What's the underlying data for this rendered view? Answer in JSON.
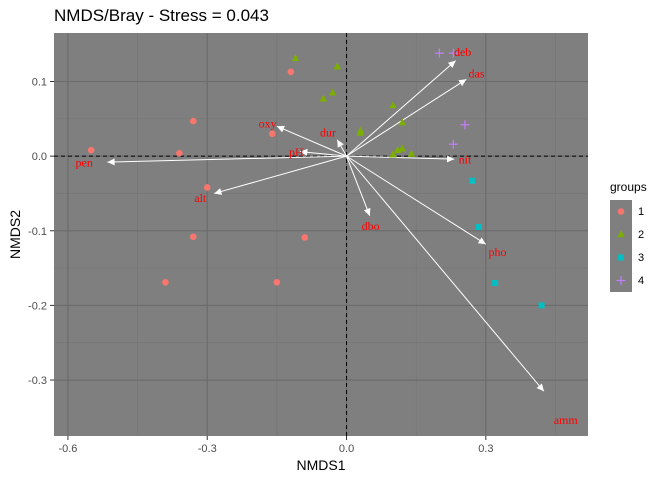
{
  "chart_data": {
    "type": "scatter",
    "title": "NMDS/Bray - Stress = 0.043",
    "xlabel": "NMDS1",
    "ylabel": "NMDS2",
    "xlim": [
      -0.63,
      0.52
    ],
    "ylim": [
      -0.375,
      0.165
    ],
    "xticks": [
      "-0.6",
      "-0.3",
      "0.0",
      "0.3"
    ],
    "xtick_values": [
      -0.6,
      -0.3,
      0.0,
      0.3
    ],
    "yticks": [
      "0.1",
      "0.0",
      "-0.1",
      "-0.2",
      "-0.3"
    ],
    "ytick_values": [
      0.1,
      0.0,
      -0.1,
      -0.2,
      -0.3
    ],
    "legend": {
      "title": "groups",
      "placement": "right",
      "labels": [
        "1",
        "2",
        "3",
        "4"
      ]
    },
    "colors": {
      "panel": "#7f7f7f",
      "grid_major": "#6b6b6b",
      "grid_minor": "#757575",
      "arrow": "#ffffff",
      "arrow_label": "#ff0000",
      "g1": "#f8766d",
      "g2": "#7cae00",
      "g3": "#00bfc4",
      "g4": "#c77cff"
    },
    "series": [
      {
        "name": "1",
        "shape": "circle",
        "points": [
          [
            -0.55,
            0.008
          ],
          [
            -0.33,
            0.047
          ],
          [
            -0.36,
            0.004
          ],
          [
            -0.12,
            0.113
          ],
          [
            -0.16,
            0.03
          ],
          [
            -0.3,
            -0.042
          ],
          [
            -0.33,
            -0.108
          ],
          [
            -0.09,
            -0.109
          ],
          [
            -0.39,
            -0.169
          ],
          [
            -0.15,
            -0.169
          ]
        ]
      },
      {
        "name": "2",
        "shape": "triangle",
        "points": [
          [
            -0.11,
            0.131
          ],
          [
            -0.02,
            0.12
          ],
          [
            -0.05,
            0.077
          ],
          [
            -0.03,
            0.085
          ],
          [
            0.03,
            0.034
          ],
          [
            0.03,
            0.031
          ],
          [
            0.1,
            0.068
          ],
          [
            0.12,
            0.045
          ],
          [
            0.1,
            0.002
          ],
          [
            0.11,
            0.008
          ],
          [
            0.12,
            0.01
          ],
          [
            0.14,
            0.003
          ]
        ]
      },
      {
        "name": "3",
        "shape": "square",
        "points": [
          [
            0.27,
            -0.033
          ],
          [
            0.285,
            -0.095
          ],
          [
            0.32,
            -0.17
          ],
          [
            0.42,
            -0.2
          ]
        ]
      },
      {
        "name": "4",
        "shape": "cross",
        "points": [
          [
            0.2,
            0.138
          ],
          [
            0.23,
            0.138
          ],
          [
            0.255,
            0.042
          ],
          [
            0.23,
            0.016
          ]
        ]
      }
    ],
    "vectors": [
      {
        "label": "deb",
        "x": 0.235,
        "y": 0.128,
        "lx": 0.25,
        "ly": 0.138
      },
      {
        "label": "das",
        "x": 0.258,
        "y": 0.103,
        "lx": 0.28,
        "ly": 0.109
      },
      {
        "label": "nit",
        "x": 0.232,
        "y": -0.004,
        "lx": 0.255,
        "ly": -0.006
      },
      {
        "label": "pho",
        "x": 0.3,
        "y": -0.118,
        "lx": 0.325,
        "ly": -0.13
      },
      {
        "label": "amm",
        "x": 0.425,
        "y": -0.315,
        "lx": 0.472,
        "ly": -0.355
      },
      {
        "label": "dbo",
        "x": 0.05,
        "y": -0.08,
        "lx": 0.052,
        "ly": -0.095
      },
      {
        "label": "dur",
        "x": -0.02,
        "y": 0.022,
        "lx": -0.04,
        "ly": 0.03
      },
      {
        "label": "oxy",
        "x": -0.15,
        "y": 0.04,
        "lx": -0.17,
        "ly": 0.042
      },
      {
        "label": "pH",
        "x": -0.1,
        "y": 0.006,
        "lx": -0.108,
        "ly": 0.004
      },
      {
        "label": "alt",
        "x": -0.285,
        "y": -0.05,
        "lx": -0.315,
        "ly": -0.058
      },
      {
        "label": "pen",
        "x": -0.515,
        "y": -0.008,
        "lx": -0.565,
        "ly": -0.01
      }
    ]
  }
}
